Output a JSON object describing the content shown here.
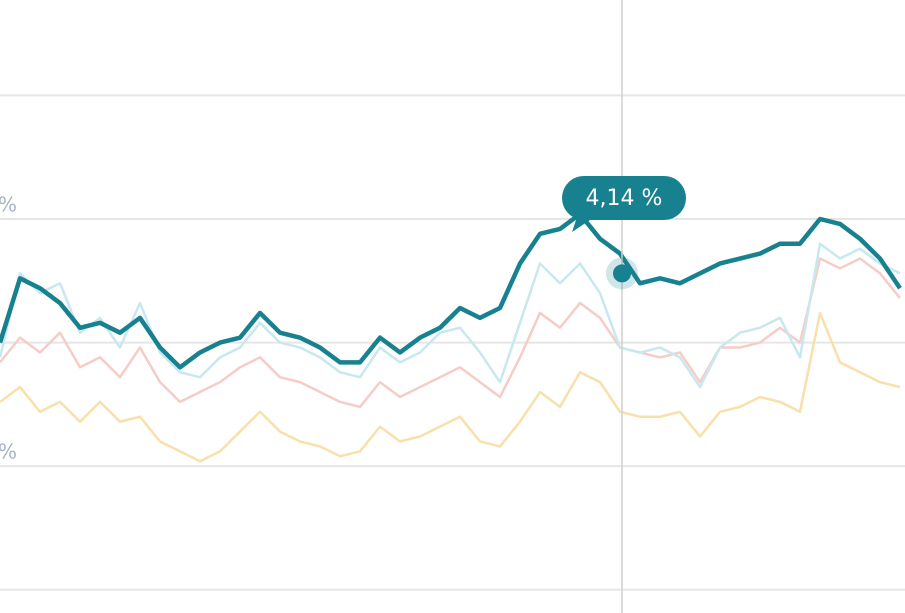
{
  "chart_data": {
    "type": "line",
    "ylim": [
      3.453,
      4.693
    ],
    "yticks": [
      {
        "value": 4.5,
        "label": null
      },
      {
        "value": 4.25,
        "label": "%"
      },
      {
        "value": 4.0,
        "label": null
      },
      {
        "value": 3.75,
        "label": "%"
      },
      {
        "value": 3.5,
        "label": null
      }
    ],
    "grid": true,
    "series": [
      {
        "color": "#f9e0ab",
        "values": [
          3.88,
          3.91,
          3.86,
          3.88,
          3.84,
          3.88,
          3.84,
          3.85,
          3.8,
          3.78,
          3.76,
          3.78,
          3.82,
          3.86,
          3.82,
          3.8,
          3.79,
          3.77,
          3.78,
          3.83,
          3.8,
          3.81,
          3.83,
          3.85,
          3.8,
          3.79,
          3.84,
          3.9,
          3.87,
          3.94,
          3.92,
          3.86,
          3.85,
          3.85,
          3.86,
          3.81,
          3.86,
          3.87,
          3.89,
          3.88,
          3.86,
          4.06,
          3.96,
          3.94,
          3.92,
          3.91
        ]
      },
      {
        "color": "#f6cdc6",
        "values": [
          3.96,
          4.01,
          3.98,
          4.02,
          3.95,
          3.97,
          3.93,
          3.99,
          3.92,
          3.88,
          3.9,
          3.92,
          3.95,
          3.97,
          3.93,
          3.92,
          3.9,
          3.88,
          3.87,
          3.92,
          3.89,
          3.91,
          3.93,
          3.95,
          3.92,
          3.89,
          3.97,
          4.06,
          4.03,
          4.08,
          4.05,
          3.99,
          3.98,
          3.97,
          3.98,
          3.92,
          3.99,
          3.99,
          4.0,
          4.03,
          4.0,
          4.17,
          4.15,
          4.17,
          4.14,
          4.09
        ]
      },
      {
        "color": "#c8e8f0",
        "values": [
          3.97,
          4.14,
          4.1,
          4.12,
          4.02,
          4.05,
          3.99,
          4.08,
          3.98,
          3.94,
          3.93,
          3.97,
          3.99,
          4.04,
          4.0,
          3.99,
          3.97,
          3.94,
          3.93,
          3.99,
          3.96,
          3.98,
          4.02,
          4.03,
          3.98,
          3.92,
          4.04,
          4.16,
          4.12,
          4.16,
          4.1,
          3.99,
          3.98,
          3.99,
          3.97,
          3.91,
          3.99,
          4.02,
          4.03,
          4.05,
          3.97,
          4.2,
          4.17,
          4.19,
          4.16,
          4.14
        ]
      },
      {
        "color": "#17818f",
        "values": [
          4.0,
          4.13,
          4.11,
          4.08,
          4.03,
          4.04,
          4.02,
          4.05,
          3.99,
          3.95,
          3.98,
          4.0,
          4.01,
          4.06,
          4.02,
          4.01,
          3.99,
          3.96,
          3.96,
          4.01,
          3.98,
          4.01,
          4.03,
          4.07,
          4.05,
          4.07,
          4.16,
          4.22,
          4.23,
          4.26,
          4.21,
          4.18,
          4.12,
          4.13,
          4.12,
          4.14,
          4.16,
          4.17,
          4.18,
          4.2,
          4.2,
          4.25,
          4.24,
          4.21,
          4.17,
          4.11
        ]
      }
    ],
    "tooltip": {
      "value": 4.14,
      "label": "4,14 %"
    }
  }
}
